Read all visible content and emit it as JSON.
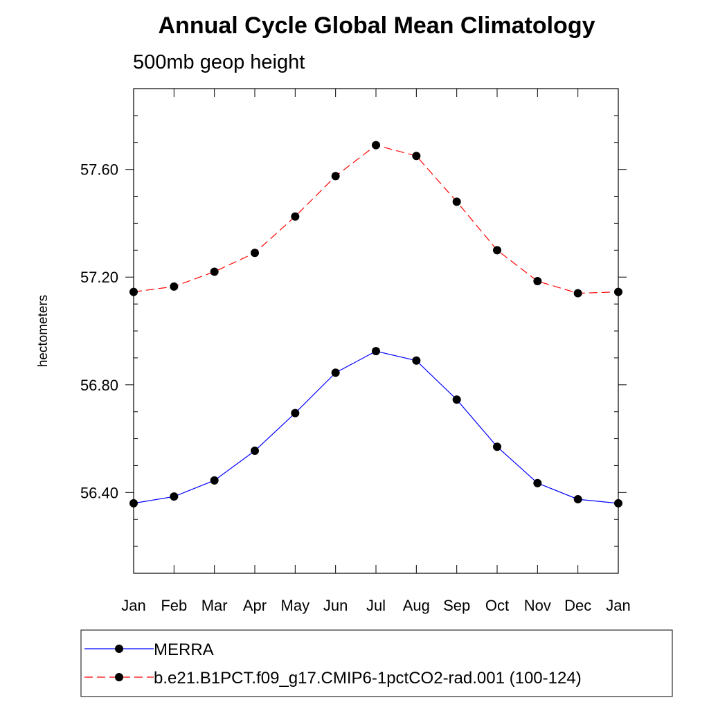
{
  "chart_data": {
    "type": "line",
    "title": "Annual Cycle Global Mean Climatology",
    "subtitle": "500mb geop height",
    "xlabel": "",
    "ylabel": "hectometers",
    "categories": [
      "Jan",
      "Feb",
      "Mar",
      "Apr",
      "May",
      "Jun",
      "Jul",
      "Aug",
      "Sep",
      "Oct",
      "Nov",
      "Dec",
      "Jan"
    ],
    "ylim": [
      56.1,
      57.9
    ],
    "yticks": [
      56.4,
      56.8,
      57.2,
      57.6
    ],
    "ytick_labels": [
      "56.40",
      "56.80",
      "57.20",
      "57.60"
    ],
    "yminor_step": 0.1,
    "grid": false,
    "legend_position": "bottom",
    "series": [
      {
        "name": "MERRA",
        "color": "#0000ff",
        "dash": "solid",
        "values": [
          56.36,
          56.385,
          56.445,
          56.555,
          56.695,
          56.845,
          56.925,
          56.89,
          56.745,
          56.57,
          56.435,
          56.375,
          56.36
        ]
      },
      {
        "name": "b.e21.B1PCT.f09_g17.CMIP6-1pctCO2-rad.001 (100-124)",
        "color": "#ff0000",
        "dash": "dashed",
        "values": [
          57.145,
          57.165,
          57.22,
          57.29,
          57.425,
          57.575,
          57.69,
          57.65,
          57.48,
          57.3,
          57.185,
          57.14,
          57.145
        ]
      }
    ]
  }
}
